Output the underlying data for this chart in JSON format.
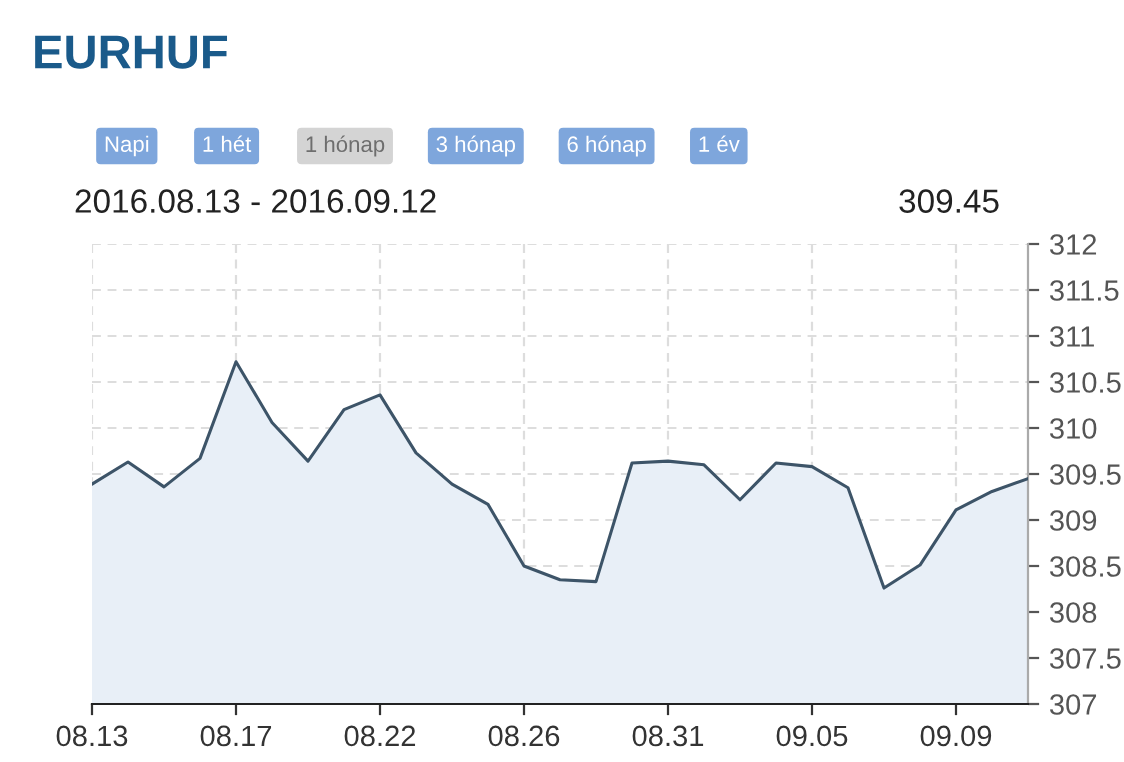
{
  "chart_data": {
    "type": "area",
    "title": "EURHUF",
    "subtitle": "2016.08.13 - 2016.09.12",
    "annotations": [
      "Napi",
      "1 hét",
      "1 hónap",
      "3 hónap",
      "6 hónap",
      "1 év",
      "309.45"
    ],
    "categories": [
      "08.13",
      null,
      null,
      null,
      "08.17",
      null,
      null,
      null,
      "08.22",
      null,
      null,
      null,
      "08.26",
      null,
      null,
      null,
      "08.31",
      null,
      null,
      null,
      "09.05",
      null,
      null,
      null,
      "09.09",
      null,
      null
    ],
    "series": [
      {
        "color": "#3d5468",
        "values": [
          309.39,
          309.63,
          309.36,
          309.67,
          310.72,
          310.06,
          309.64,
          310.2,
          310.36,
          309.73,
          309.39,
          309.17,
          308.5,
          308.35,
          308.33,
          309.62,
          309.64,
          309.6,
          309.22,
          309.62,
          309.58,
          309.35,
          308.26,
          308.51,
          309.11,
          309.31,
          309.45
        ]
      }
    ],
    "ylim": [
      307,
      312
    ],
    "yticks": [
      307,
      307.5,
      308,
      308.5,
      309,
      309.5,
      310,
      310.5,
      311,
      311.5,
      312
    ],
    "grid": true,
    "legend": false
  }
}
